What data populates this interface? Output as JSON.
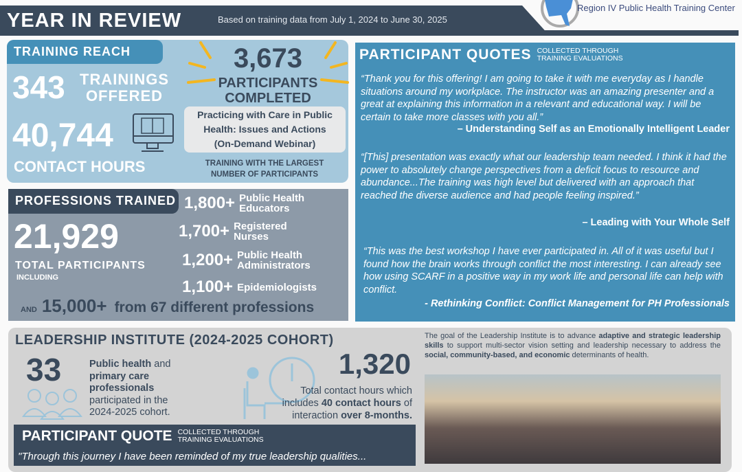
{
  "header": {
    "title": "YEAR IN REVIEW",
    "subtitle": "Based on training data from July 1, 2024 to June 30, 2025",
    "org": "Region IV Public Health Training Center"
  },
  "reach": {
    "tab": "TRAINING REACH",
    "trainings": "343",
    "trainings_label1": "TRAININGS",
    "trainings_label2": "OFFERED",
    "hours": "40,744",
    "hours_label": "CONTACT HOURS",
    "participants": "3,673",
    "participants_label1": "PARTICIPANTS",
    "participants_label2": "COMPLETED",
    "top_training1": "Practicing with Care in Public",
    "top_training2": "Health: Issues and Actions",
    "top_training3": "(On-Demand Webinar)",
    "top_label1": "TRAINING WITH THE LARGEST",
    "top_label2": "NUMBER OF PARTICIPANTS"
  },
  "professions": {
    "tab": "PROFESSIONS TRAINED",
    "total": "21,929",
    "total_label": "TOTAL PARTICIPANTS",
    "including": "INCLUDING",
    "items": [
      {
        "num": "1,800+",
        "l1": "Public Health",
        "l2": "Educators"
      },
      {
        "num": "1,700+",
        "l1": "Registered",
        "l2": "Nurses"
      },
      {
        "num": "1,200+",
        "l1": "Public Health",
        "l2": "Administrators"
      },
      {
        "num": "1,100+",
        "l1": "Epidemiologists",
        "l2": ""
      }
    ],
    "and": "AND",
    "other_num": "15,000+",
    "other_label": "from 67 different professions"
  },
  "quotes": {
    "title": "PARTICIPANT QUOTES",
    "note1": "COLLECTED THROUGH",
    "note2": "TRAINING EVALUATIONS",
    "items": [
      {
        "text": "“Thank you for this offering! I am going to take it with me everyday as I handle situations around my workplace. The instructor was an amazing presenter and a great at explaining this information in a relevant and educational way. I will be certain to take more classes with you all.”",
        "source": "– Understanding Self as an Emotionally Intelligent Leader"
      },
      {
        "text": "“[This] presentation was exactly what our leadership team needed. I think it had the power to absolutely change perspectives from a deficit focus to resource and abundance...The training was high level but delivered with an approach that reached the diverse audience and had people feeling inspired.”",
        "source": "– Leading with Your Whole Self"
      },
      {
        "text": "“This was the best workshop I have ever participated in. All of it was useful but I found how the brain works through conflict the most interesting. I can already see how using SCARF in a positive way in my work life and personal life can help with conflict.",
        "source": "- Rethinking Conflict: Conflict Management for PH Professionals"
      }
    ]
  },
  "leadership": {
    "title": "LEADERSHIP INSTITUTE (2024-2025 COHORT)",
    "count": "33",
    "count_b1": "Public health",
    "count_t1": " and",
    "count_b2": "primary care",
    "count_b3": "professionals",
    "count_t2": "participated in the",
    "count_t3": "2024-2025 cohort.",
    "hours": "1,320",
    "hours_t1": "Total contact hours which",
    "hours_t2": "includes ",
    "hours_b1": "40 contact hours",
    "hours_t3": " of",
    "hours_t4": "interaction ",
    "hours_b2": "over 8-months.",
    "goal_t1": "The goal of the Leadership Institute is to advance ",
    "goal_b1": "adaptive and strategic leadership skills",
    "goal_t2": " to support multi-sector vision setting and leadership necessary to address the ",
    "goal_b2": "social, community-based, and economic",
    "goal_t3": " determinants of health.",
    "quote_title": "PARTICIPANT QUOTE",
    "quote_note1": "COLLECTED THROUGH",
    "quote_note2": "TRAINING EVALUATIONS",
    "quote_text": "\"Through this journey I have been reminded of my true leadership qualities..."
  },
  "colors": {
    "dark": "#3a4a5c",
    "blue": "#4590b8",
    "light_blue": "#a5c8dc",
    "gray": "#8d9aa8",
    "accent": "#f3b620"
  }
}
